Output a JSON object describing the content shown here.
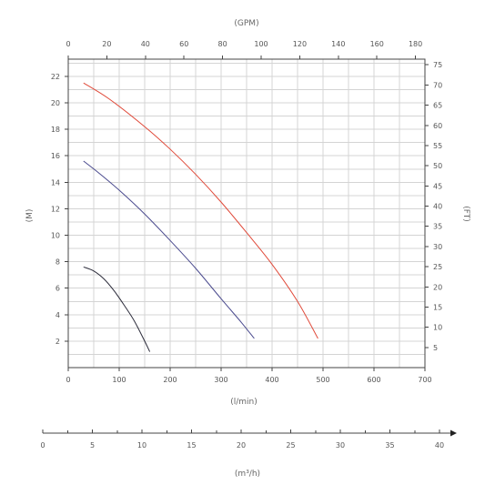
{
  "chart_data": {
    "type": "line",
    "x_label": "(l/min)",
    "y_label": "(M)",
    "x2_label": "(GPM)",
    "y2_label": "(FT)",
    "x3_label": "(m³/h)",
    "xlim": [
      0,
      700
    ],
    "ylim": [
      0,
      23.3
    ],
    "x2lim": [
      0,
      184.9
    ],
    "y2lim": [
      0,
      76.4
    ],
    "x3lim": [
      0,
      42
    ],
    "x_ticks": [
      "0",
      "100",
      "200",
      "300",
      "400",
      "500",
      "600",
      "700"
    ],
    "y_ticks": [
      "2",
      "4",
      "6",
      "8",
      "10",
      "12",
      "14",
      "16",
      "18",
      "20",
      "22"
    ],
    "x2_ticks": [
      "0",
      "20",
      "40",
      "60",
      "80",
      "100",
      "120",
      "140",
      "160",
      "180"
    ],
    "y2_ticks": [
      "5",
      "10",
      "15",
      "20",
      "25",
      "30",
      "35",
      "40",
      "45",
      "50",
      "55",
      "60",
      "65",
      "70",
      "75"
    ],
    "x3_ticks": [
      "0",
      "5",
      "10",
      "15",
      "20",
      "25",
      "30",
      "35",
      "40"
    ],
    "grid": true,
    "series": [
      {
        "color": "#2b2b3a",
        "x": [
          30,
          50,
          70,
          90,
          110,
          130,
          150,
          160
        ],
        "y": [
          7.6,
          7.3,
          6.7,
          5.8,
          4.7,
          3.5,
          2.0,
          1.2
        ]
      },
      {
        "color": "#4a4a8e",
        "x": [
          30,
          60,
          100,
          150,
          200,
          250,
          300,
          340,
          365
        ],
        "y": [
          15.6,
          14.7,
          13.4,
          11.6,
          9.6,
          7.5,
          5.2,
          3.4,
          2.2
        ]
      },
      {
        "color": "#e04a3a",
        "x": [
          30,
          80,
          150,
          200,
          250,
          300,
          350,
          400,
          450,
          490
        ],
        "y": [
          21.5,
          20.3,
          18.2,
          16.5,
          14.6,
          12.5,
          10.2,
          7.8,
          5.0,
          2.2
        ]
      }
    ]
  }
}
